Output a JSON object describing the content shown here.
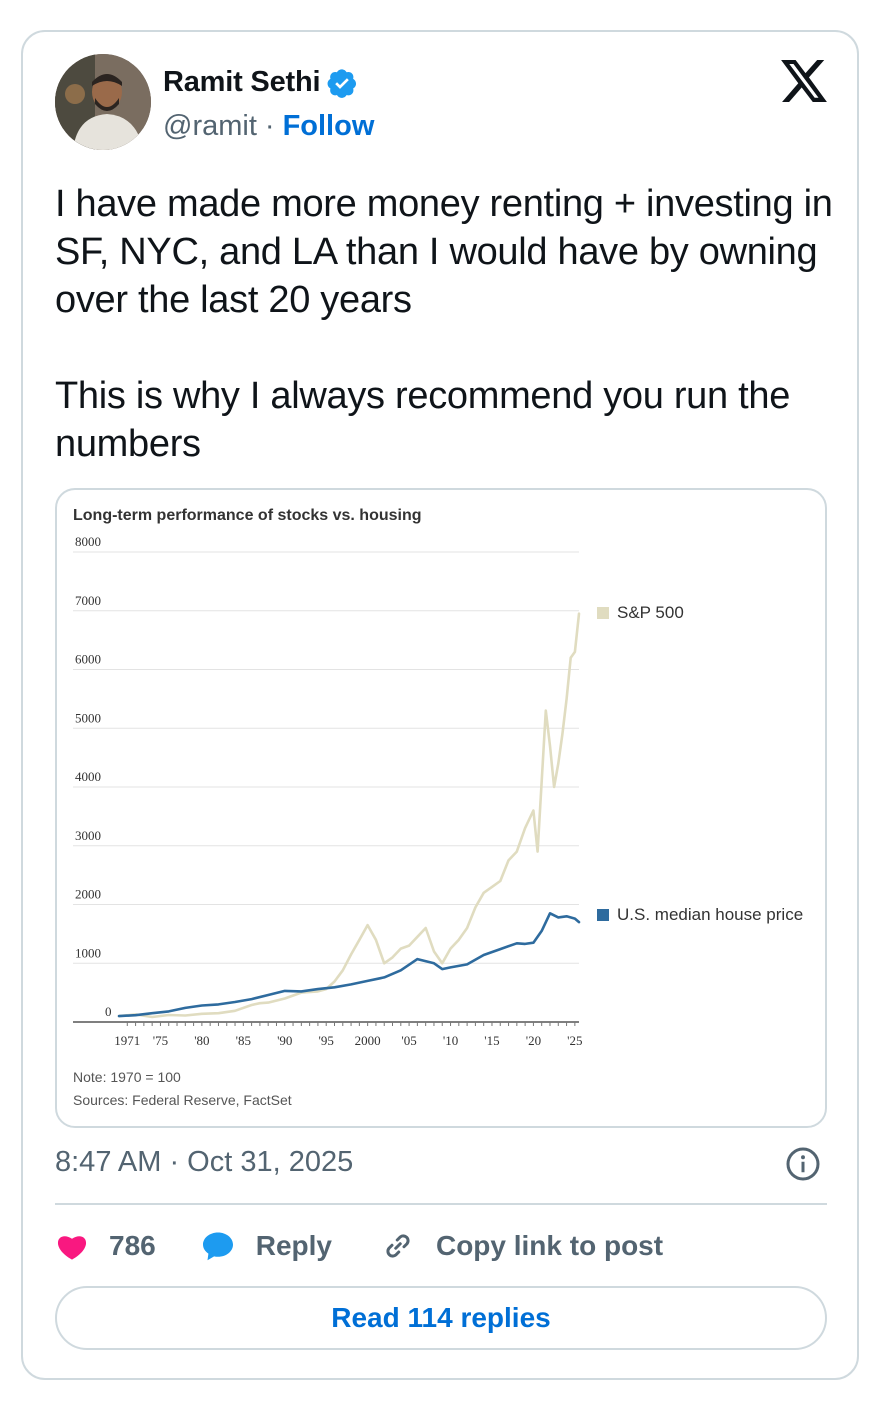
{
  "author": {
    "name": "Ramit Sethi",
    "handle": "@ramit",
    "separator": "·",
    "follow_label": "Follow"
  },
  "tweet": {
    "paragraphs": [
      "I have made more money renting + investing in SF, NYC, and LA than I would have by owning over the last 20 years",
      "This is why I always recommend you run the numbers"
    ],
    "timestamp": "8:47 AM · Oct 31, 2025"
  },
  "actions": {
    "likes_count": "786",
    "reply_label": "Reply",
    "copy_label": "Copy link to post",
    "read_replies_label": "Read 114 replies"
  },
  "colors": {
    "accent_blue": "#006fd6",
    "like_red": "#f91880",
    "reply_blue": "#1d9bf0",
    "sp500_line": "#e0dcc0",
    "house_line": "#2e6b9e"
  },
  "icons": [
    "verified-badge-icon",
    "x-logo-icon",
    "info-icon",
    "heart-icon",
    "reply-bubble-icon",
    "link-icon"
  ],
  "chart_data": {
    "type": "line",
    "title": "Long-term performance of stocks vs. housing",
    "xlabel": "",
    "ylabel": "",
    "ylim": [
      0,
      8000
    ],
    "y_ticks": [
      0,
      1000,
      2000,
      3000,
      4000,
      5000,
      6000,
      7000,
      8000
    ],
    "x_ticks": [
      {
        "value": 1971,
        "label": "1971"
      },
      {
        "value": 1975,
        "label": "'75"
      },
      {
        "value": 1980,
        "label": "'80"
      },
      {
        "value": 1985,
        "label": "'85"
      },
      {
        "value": 1990,
        "label": "'90"
      },
      {
        "value": 1995,
        "label": "'95"
      },
      {
        "value": 2000,
        "label": "2000"
      },
      {
        "value": 2005,
        "label": "'05"
      },
      {
        "value": 2010,
        "label": "'10"
      },
      {
        "value": 2015,
        "label": "'15"
      },
      {
        "value": 2020,
        "label": "'20"
      },
      {
        "value": 2025,
        "label": "'25"
      }
    ],
    "xlim": [
      1970,
      2025.5
    ],
    "grid": true,
    "legend_placement": "right, inline with series ends",
    "series": [
      {
        "name": "S&P 500",
        "color": "#e0dcc0",
        "x": [
          1970,
          1972,
          1974,
          1976,
          1978,
          1980,
          1982,
          1984,
          1986,
          1987,
          1988,
          1990,
          1992,
          1994,
          1995,
          1996,
          1997,
          1998,
          1999,
          2000,
          2001,
          2002,
          2003,
          2004,
          2005,
          2006,
          2007,
          2008,
          2009,
          2010,
          2011,
          2012,
          2013,
          2014,
          2015,
          2016,
          2017,
          2018,
          2019,
          2020,
          2020.5,
          2021,
          2021.5,
          2022,
          2022.5,
          2023,
          2023.5,
          2024,
          2024.5,
          2025,
          2025.5
        ],
        "values": [
          100,
          130,
          85,
          120,
          110,
          140,
          150,
          190,
          290,
          320,
          330,
          400,
          500,
          520,
          560,
          690,
          880,
          1150,
          1400,
          1650,
          1400,
          1000,
          1100,
          1250,
          1300,
          1450,
          1600,
          1200,
          1000,
          1250,
          1400,
          1600,
          1950,
          2200,
          2300,
          2400,
          2750,
          2900,
          3300,
          3600,
          2900,
          4100,
          5300,
          4700,
          4000,
          4400,
          4900,
          5500,
          6200,
          6300,
          6950
        ]
      },
      {
        "name": "U.S. median house price",
        "color": "#2e6b9e",
        "x": [
          1970,
          1972,
          1974,
          1976,
          1978,
          1980,
          1982,
          1984,
          1986,
          1988,
          1990,
          1992,
          1994,
          1996,
          1998,
          2000,
          2002,
          2004,
          2006,
          2008,
          2009,
          2010,
          2012,
          2014,
          2016,
          2018,
          2019,
          2020,
          2021,
          2022,
          2023,
          2024,
          2025,
          2025.5
        ],
        "values": [
          100,
          115,
          150,
          180,
          240,
          280,
          300,
          340,
          390,
          460,
          530,
          520,
          560,
          590,
          640,
          700,
          760,
          880,
          1070,
          1000,
          900,
          930,
          980,
          1140,
          1240,
          1340,
          1330,
          1350,
          1550,
          1850,
          1780,
          1800,
          1760,
          1700
        ]
      }
    ],
    "notes": [
      "Note: 1970 = 100",
      "Sources: Federal Reserve, FactSet"
    ]
  }
}
